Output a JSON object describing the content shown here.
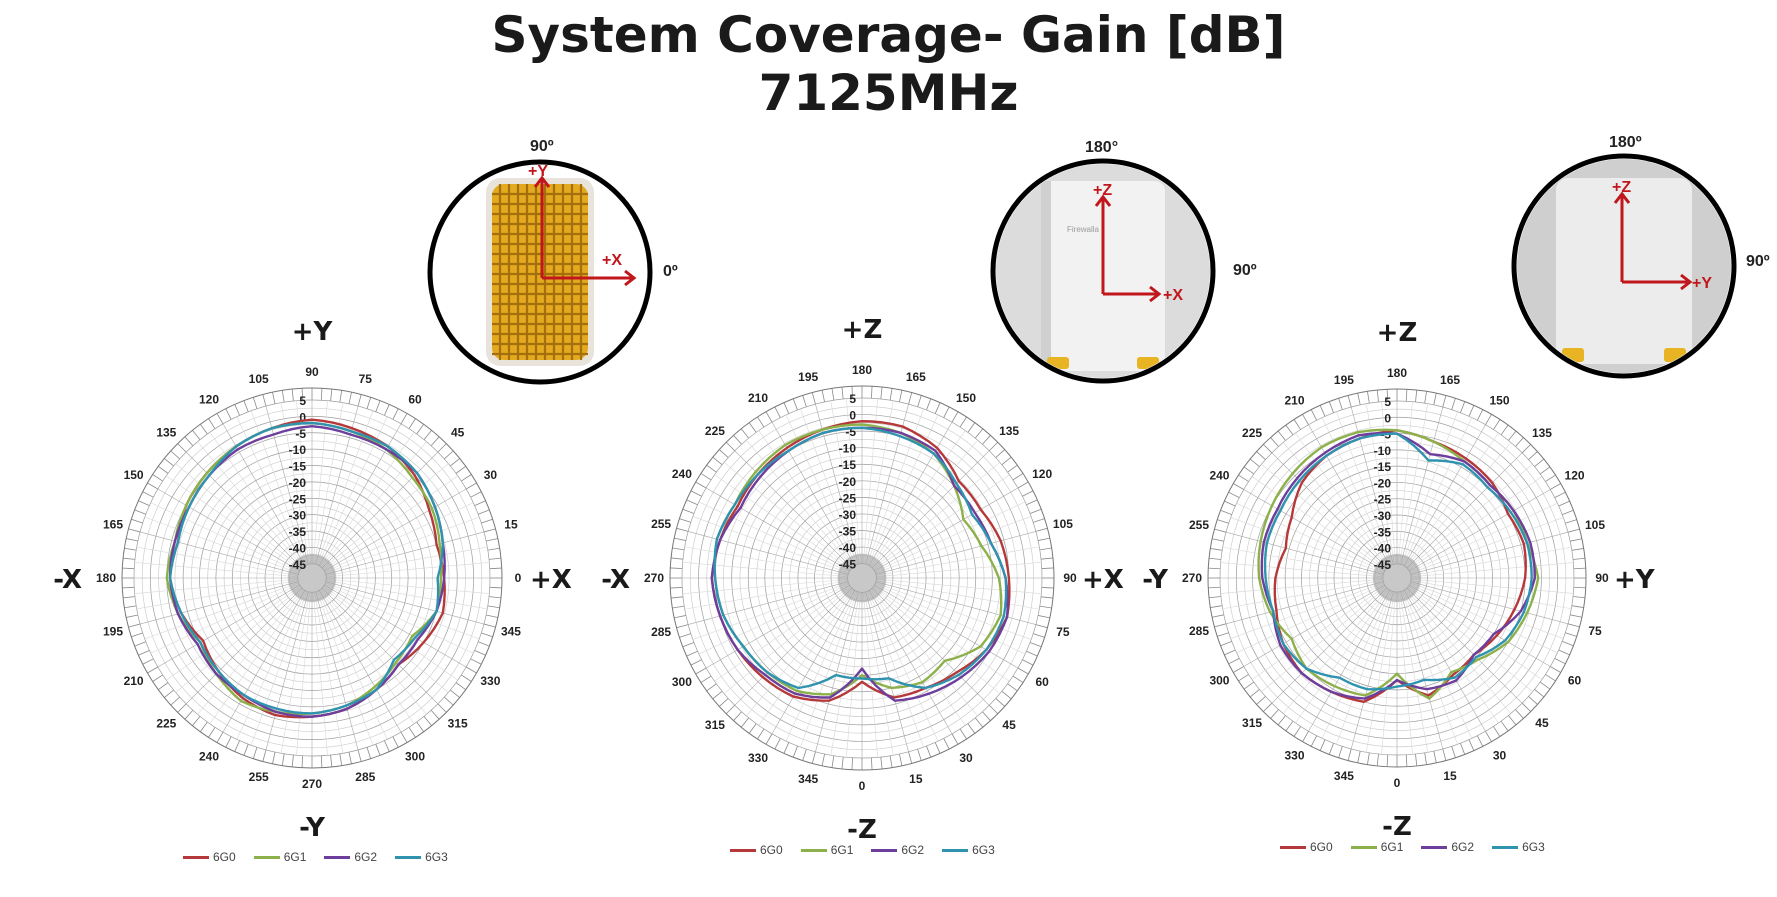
{
  "title": {
    "line1": "System Coverage- Gain [dB]",
    "line2": "7125MHz"
  },
  "colors": {
    "6G0": "#b5393a",
    "6G1": "#8db14a",
    "6G2": "#6e3e9c",
    "6G3": "#2f93b0",
    "arrow": "#c1161c"
  },
  "insets": [
    {
      "top": "90º",
      "right": "0º",
      "axis_up": "+Y",
      "axis_right": "+X",
      "device": "top-view grid"
    },
    {
      "top": "180°",
      "right": "90º",
      "axis_up": "+Z",
      "axis_right": "+X",
      "device": "front view",
      "brand": "Firewalla"
    },
    {
      "top": "180º",
      "right": "90º",
      "axis_up": "+Z",
      "axis_right": "+Y",
      "device": "side view"
    }
  ],
  "chart_data": [
    {
      "type": "polar-line",
      "title": "",
      "direction_labels": {
        "top": "+Y",
        "bottom": "-Y",
        "left": "-X",
        "right": "+X"
      },
      "theta_ticks": [
        "90",
        "75",
        "60",
        "45",
        "30",
        "15",
        "0",
        "345",
        "330",
        "315",
        "300",
        "285",
        "270",
        "255",
        "240",
        "225",
        "210",
        "195",
        "180",
        "165",
        "150",
        "135",
        "120",
        "105"
      ],
      "r_ticks": [
        "5",
        "0",
        "-5",
        "-10",
        "-15",
        "-20",
        "-25",
        "-30",
        "-35",
        "-40",
        "-45"
      ],
      "rlim": [
        -45,
        5
      ],
      "legend": [
        "6G0",
        "6G1",
        "6G2",
        "6G3"
      ],
      "series": [
        {
          "name": "6G0",
          "values": [
            -1,
            -2,
            -3,
            -5,
            -8,
            -10,
            -9,
            -8,
            -10,
            -12,
            -10,
            -8,
            -7,
            -6,
            -7,
            -9,
            -11,
            -8,
            -6,
            -7,
            -5,
            -4,
            -3,
            -2
          ]
        },
        {
          "name": "6G1",
          "values": [
            -2,
            -3,
            -4,
            -6,
            -7,
            -9,
            -10,
            -10,
            -14,
            -13,
            -11,
            -9,
            -8,
            -7,
            -6,
            -8,
            -10,
            -7,
            -5,
            -6,
            -5,
            -4,
            -3,
            -2
          ]
        },
        {
          "name": "6G2",
          "values": [
            -3,
            -4,
            -4,
            -4,
            -6,
            -8,
            -9,
            -10,
            -12,
            -12,
            -10,
            -8,
            -7,
            -7,
            -8,
            -8,
            -9,
            -7,
            -6,
            -6,
            -6,
            -5,
            -4,
            -4
          ]
        },
        {
          "name": "6G3",
          "values": [
            -2,
            -3,
            -3,
            -4,
            -6,
            -8,
            -11,
            -10,
            -13,
            -14,
            -10,
            -9,
            -8,
            -8,
            -8,
            -9,
            -10,
            -8,
            -6,
            -7,
            -6,
            -5,
            -3,
            -2
          ]
        }
      ]
    },
    {
      "type": "polar-line",
      "title": "",
      "direction_labels": {
        "top": "+Z",
        "bottom": "-Z",
        "left": "-X",
        "right": "+X"
      },
      "theta_ticks": [
        "180",
        "165",
        "150",
        "135",
        "120",
        "105",
        "90",
        "75",
        "60",
        "45",
        "30",
        "15",
        "0",
        "345",
        "330",
        "315",
        "300",
        "285",
        "270",
        "255",
        "240",
        "225",
        "210",
        "195"
      ],
      "r_ticks": [
        "5",
        "0",
        "-5",
        "-10",
        "-15",
        "-20",
        "-25",
        "-30",
        "-35",
        "-40",
        "-45"
      ],
      "rlim": [
        -45,
        5
      ],
      "legend": [
        "6G0",
        "6G1",
        "6G2",
        "6G3"
      ],
      "series": [
        {
          "name": "6G0",
          "values": [
            -2,
            -2,
            -4,
            -8,
            -8,
            -6,
            -5,
            -4,
            -6,
            -9,
            -11,
            -12,
            -18,
            -11,
            -8,
            -7,
            -6,
            -5,
            -4,
            -5,
            -6,
            -5,
            -4,
            -3
          ]
        },
        {
          "name": "6G1",
          "values": [
            -3,
            -4,
            -6,
            -10,
            -14,
            -12,
            -8,
            -6,
            -8,
            -14,
            -13,
            -15,
            -20,
            -13,
            -10,
            -9,
            -8,
            -6,
            -5,
            -4,
            -5,
            -4,
            -3,
            -3
          ]
        },
        {
          "name": "6G2",
          "values": [
            -4,
            -4,
            -5,
            -10,
            -10,
            -9,
            -6,
            -4,
            -5,
            -7,
            -9,
            -11,
            -22,
            -12,
            -9,
            -8,
            -6,
            -5,
            -4,
            -5,
            -7,
            -6,
            -5,
            -4
          ]
        },
        {
          "name": "6G3",
          "values": [
            -4,
            -5,
            -6,
            -9,
            -11,
            -9,
            -6,
            -5,
            -6,
            -8,
            -11,
            -18,
            -19,
            -19,
            -11,
            -9,
            -8,
            -6,
            -5,
            -4,
            -5,
            -5,
            -5,
            -4
          ]
        }
      ]
    },
    {
      "type": "polar-line",
      "title": "",
      "direction_labels": {
        "top": "+Z",
        "bottom": "-Z",
        "left": "-Y",
        "right": "+Y"
      },
      "theta_ticks": [
        "180",
        "165",
        "150",
        "135",
        "120",
        "105",
        "90",
        "75",
        "60",
        "45",
        "30",
        "15",
        "0",
        "345",
        "330",
        "315",
        "300",
        "285",
        "270",
        "255",
        "240",
        "225",
        "210",
        "195"
      ],
      "r_ticks": [
        "5",
        "0",
        "-5",
        "-10",
        "-15",
        "-20",
        "-25",
        "-30",
        "-35",
        "-40",
        "-45"
      ],
      "rlim": [
        -45,
        5
      ],
      "legend": [
        "6G0",
        "6G1",
        "6G2",
        "6G3"
      ],
      "series": [
        {
          "name": "6G0",
          "values": [
            -4,
            -6,
            -7,
            -8,
            -10,
            -9,
            -10,
            -12,
            -14,
            -16,
            -15,
            -12,
            -18,
            -10,
            -9,
            -8,
            -9,
            -11,
            -12,
            -14,
            -12,
            -8,
            -6,
            -5
          ]
        },
        {
          "name": "6G1",
          "values": [
            -4,
            -6,
            -8,
            -9,
            -8,
            -8,
            -6,
            -8,
            -10,
            -14,
            -16,
            -11,
            -20,
            -12,
            -11,
            -10,
            -12,
            -9,
            -7,
            -6,
            -5,
            -4,
            -3,
            -3
          ]
        },
        {
          "name": "6G2",
          "values": [
            -5,
            -10,
            -8,
            -9,
            -8,
            -7,
            -7,
            -10,
            -15,
            -16,
            -13,
            -14,
            -18,
            -11,
            -9,
            -8,
            -8,
            -10,
            -8,
            -7,
            -7,
            -6,
            -5,
            -4
          ]
        },
        {
          "name": "6G3",
          "values": [
            -5,
            -12,
            -9,
            -10,
            -9,
            -8,
            -8,
            -9,
            -11,
            -15,
            -14,
            -17,
            -16,
            -14,
            -14,
            -10,
            -9,
            -10,
            -9,
            -8,
            -8,
            -7,
            -6,
            -5
          ]
        }
      ]
    }
  ]
}
